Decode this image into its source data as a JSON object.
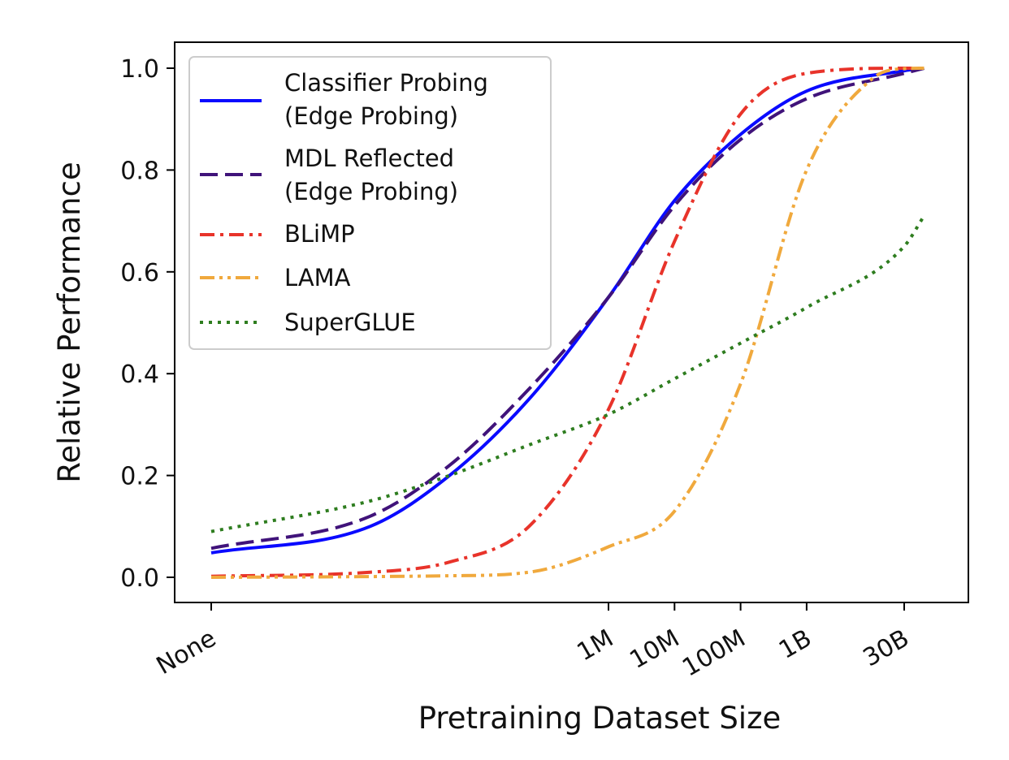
{
  "chart_data": {
    "type": "line",
    "title": "",
    "xlabel": "Pretraining Dataset Size",
    "ylabel": "Relative Performance",
    "x_scale": "log10 (dataset size in words)",
    "x_ticks": [
      {
        "value": 0,
        "label": "None"
      },
      {
        "value": 1000000,
        "label": "1M"
      },
      {
        "value": 10000000,
        "label": "10M"
      },
      {
        "value": 100000000,
        "label": "100M"
      },
      {
        "value": 1000000000,
        "label": "1B"
      },
      {
        "value": 30000000000,
        "label": "30B"
      }
    ],
    "y_ticks": [
      "0.0",
      "0.2",
      "0.4",
      "0.6",
      "0.8",
      "1.0"
    ],
    "ylim": [
      -0.05,
      1.05
    ],
    "grid": false,
    "legend": {
      "position": "top-left"
    },
    "series": [
      {
        "name": "Classifier Probing (Edge Probing)",
        "legend_lines": [
          "Classifier Probing",
          "(Edge Probing)"
        ],
        "color": "#0a0aff",
        "style": "solid",
        "x": [
          0,
          1000,
          10000,
          100000,
          1000000,
          10000000,
          100000000,
          1000000000,
          30000000000,
          60000000000
        ],
        "y": [
          0.048,
          0.1,
          0.2,
          0.35,
          0.55,
          0.74,
          0.87,
          0.955,
          0.995,
          1.0
        ]
      },
      {
        "name": "MDL Reflected (Edge Probing)",
        "legend_lines": [
          "MDL Reflected",
          "(Edge Probing)"
        ],
        "color": "#40137a",
        "style": "dashed",
        "x": [
          0,
          1000,
          10000,
          100000,
          1000000,
          10000000,
          100000000,
          1000000000,
          30000000000,
          60000000000
        ],
        "y": [
          0.057,
          0.12,
          0.22,
          0.37,
          0.55,
          0.73,
          0.86,
          0.94,
          0.99,
          1.0
        ]
      },
      {
        "name": "BLiMP",
        "legend_lines": [
          "BLiMP"
        ],
        "color": "#e8332a",
        "style": "dashdot",
        "x": [
          0,
          1000,
          10000,
          100000,
          1000000,
          10000000,
          100000000,
          1000000000,
          30000000000,
          60000000000
        ],
        "y": [
          0.002,
          0.01,
          0.03,
          0.1,
          0.33,
          0.66,
          0.91,
          0.99,
          1.0,
          1.0
        ]
      },
      {
        "name": "LAMA",
        "legend_lines": [
          "LAMA"
        ],
        "color": "#f0a93d",
        "style": "dashdotdot",
        "x": [
          0,
          10000,
          100000,
          1000000,
          10000000,
          100000000,
          1000000000,
          10000000000,
          30000000000,
          60000000000
        ],
        "y": [
          0.0,
          0.003,
          0.01,
          0.06,
          0.13,
          0.38,
          0.8,
          0.98,
          0.999,
          1.0
        ]
      },
      {
        "name": "SuperGLUE",
        "legend_lines": [
          "SuperGLUE"
        ],
        "color": "#2e7d1f",
        "style": "dotted",
        "x": [
          0,
          1000,
          10000,
          100000,
          1000000,
          10000000,
          100000000,
          1000000000,
          30000000000,
          60000000000
        ],
        "y": [
          0.09,
          0.15,
          0.2,
          0.26,
          0.32,
          0.39,
          0.46,
          0.53,
          0.65,
          0.71
        ]
      }
    ]
  }
}
